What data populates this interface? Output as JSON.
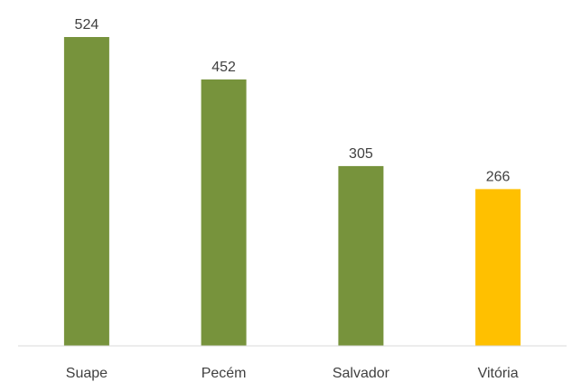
{
  "chart_data": {
    "type": "bar",
    "categories": [
      "Suape",
      "Pecém",
      "Salvador",
      "Vitória"
    ],
    "values": [
      524,
      452,
      305,
      266
    ],
    "colors": [
      "#77933c",
      "#77933c",
      "#77933c",
      "#ffc000"
    ],
    "title": "",
    "xlabel": "",
    "ylabel": "",
    "ylim": [
      0,
      524
    ],
    "grid": false,
    "legend": "none",
    "data_labels": true
  }
}
